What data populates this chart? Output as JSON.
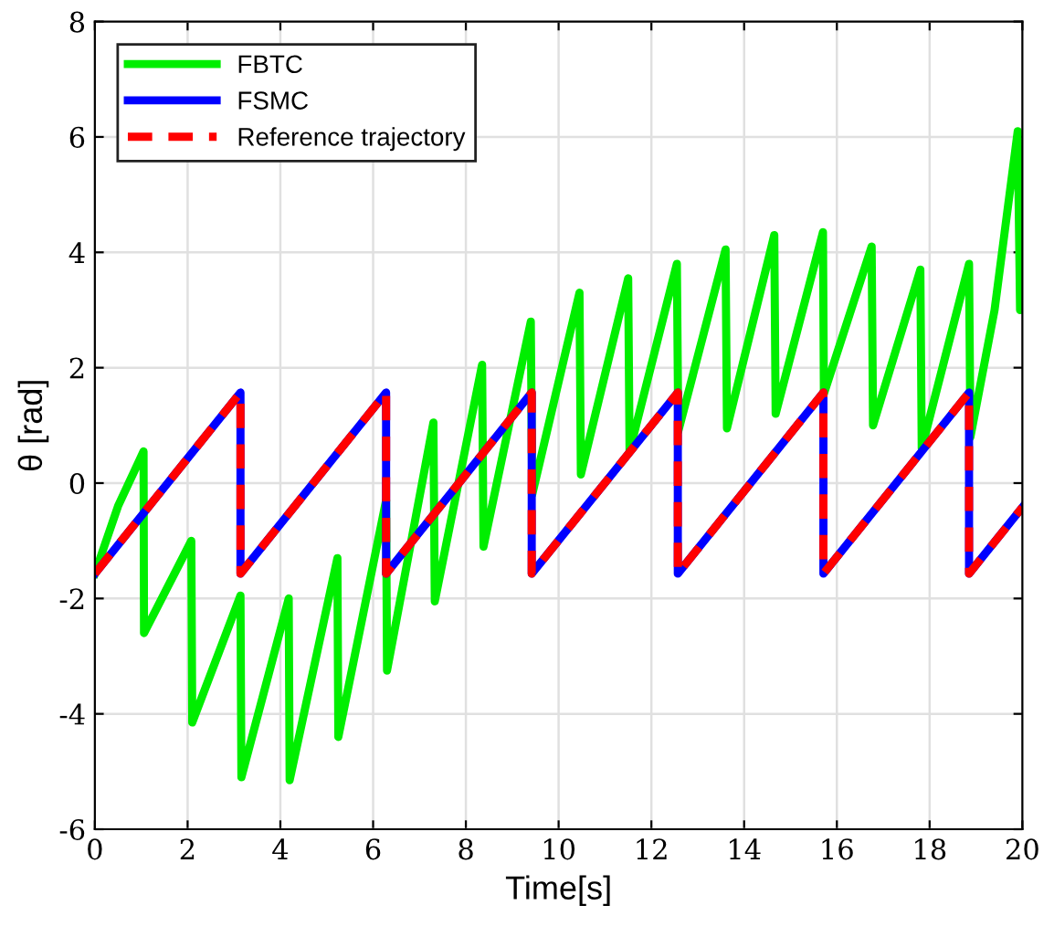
{
  "chart_data": {
    "type": "line",
    "xlabel": "Time[s]",
    "ylabel": "θ [rad]",
    "xlim": [
      0,
      20
    ],
    "ylim": [
      -6,
      8
    ],
    "xticks": [
      0,
      2,
      4,
      6,
      8,
      10,
      12,
      14,
      16,
      18,
      20
    ],
    "yticks": [
      -6,
      -4,
      -2,
      0,
      2,
      4,
      6,
      8
    ],
    "grid": true,
    "legend": "top left",
    "series": [
      {
        "name": "FBTC",
        "color": "#00ee00",
        "line_style": "solid",
        "x": [
          0,
          0.5,
          1.05,
          1.06,
          2.08,
          2.1,
          3.14,
          3.16,
          4.18,
          4.2,
          5.23,
          5.25,
          6.28,
          6.3,
          7.3,
          7.33,
          8.35,
          8.38,
          9.4,
          9.43,
          10.45,
          10.48,
          11.5,
          11.53,
          12.55,
          12.58,
          13.6,
          13.63,
          14.65,
          14.68,
          15.7,
          15.72,
          16.75,
          16.78,
          17.8,
          17.83,
          18.85,
          18.88,
          19.4,
          19.9,
          19.95,
          20
        ],
        "values": [
          -1.57,
          -0.4,
          0.55,
          -2.6,
          -1.0,
          -4.15,
          -1.95,
          -5.1,
          -2.0,
          -5.15,
          -1.3,
          -4.4,
          -0.3,
          -3.25,
          1.05,
          -2.05,
          2.05,
          -1.1,
          2.8,
          -0.2,
          3.3,
          0.15,
          3.55,
          0.55,
          3.8,
          0.9,
          4.05,
          0.95,
          4.3,
          1.2,
          4.35,
          1.55,
          4.1,
          1.0,
          3.7,
          0.6,
          3.8,
          0.8,
          3.0,
          6.1,
          3.0,
          3.6
        ]
      },
      {
        "name": "FSMC",
        "color": "#0000ff",
        "line_style": "solid",
        "x": [
          0,
          3.14,
          3.14,
          6.28,
          6.28,
          9.42,
          9.42,
          12.57,
          12.57,
          15.71,
          15.71,
          18.85,
          18.85,
          20
        ],
        "values": [
          -1.57,
          1.57,
          -1.57,
          1.57,
          -1.57,
          1.57,
          -1.57,
          1.57,
          -1.57,
          1.57,
          -1.57,
          1.57,
          -1.57,
          -0.42
        ]
      },
      {
        "name": "Reference trajectory",
        "color": "#ff0000",
        "line_style": "dashed",
        "x": [
          0,
          3.14,
          3.14,
          6.28,
          6.28,
          9.42,
          9.42,
          12.57,
          12.57,
          15.71,
          15.71,
          18.85,
          18.85,
          20
        ],
        "values": [
          -1.57,
          1.57,
          -1.57,
          1.57,
          -1.57,
          1.57,
          -1.57,
          1.57,
          -1.57,
          1.57,
          -1.57,
          1.57,
          -1.57,
          -0.42
        ]
      }
    ]
  }
}
